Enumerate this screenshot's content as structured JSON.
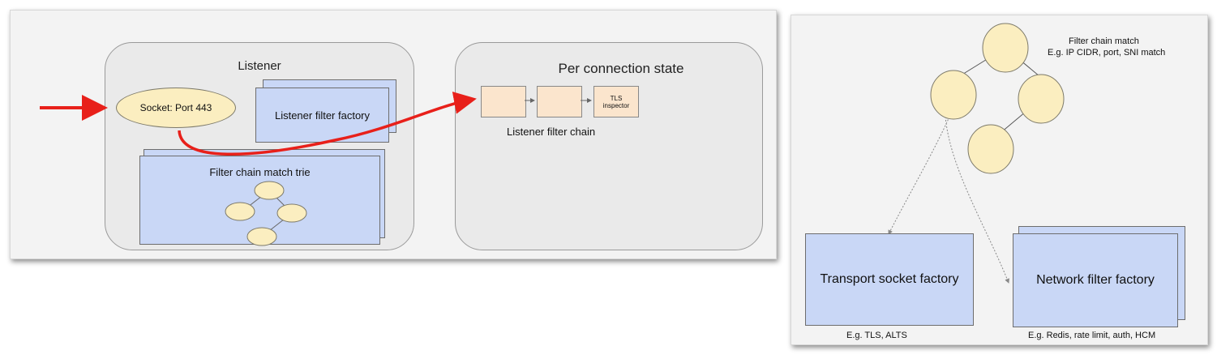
{
  "left_diagram": {
    "listener": {
      "title": "Listener",
      "socket_label": "Socket: Port 443",
      "listener_filter_factory": "Listener filter factory",
      "filter_chain_match_trie": "Filter chain match trie"
    },
    "per_connection_state": {
      "title": "Per connection state",
      "tls_inspector": "TLS\ninspector",
      "listener_filter_chain_label": "Listener filter chain"
    }
  },
  "right_diagram": {
    "filter_chain_match_title": "Filter chain match",
    "filter_chain_match_example": "E.g. IP CIDR, port, SNI match",
    "transport_socket_factory": "Transport socket factory",
    "transport_socket_example": "E.g. TLS, ALTS",
    "network_filter_factory": "Network filter factory",
    "network_filter_example": "E.g. Redis, rate limit, auth, HCM"
  },
  "colors": {
    "box_blue": "#c9d7f6",
    "oval_yellow": "#fbeec0",
    "chip_peach": "#fbe5cd",
    "arrow_red": "#e8201a"
  }
}
